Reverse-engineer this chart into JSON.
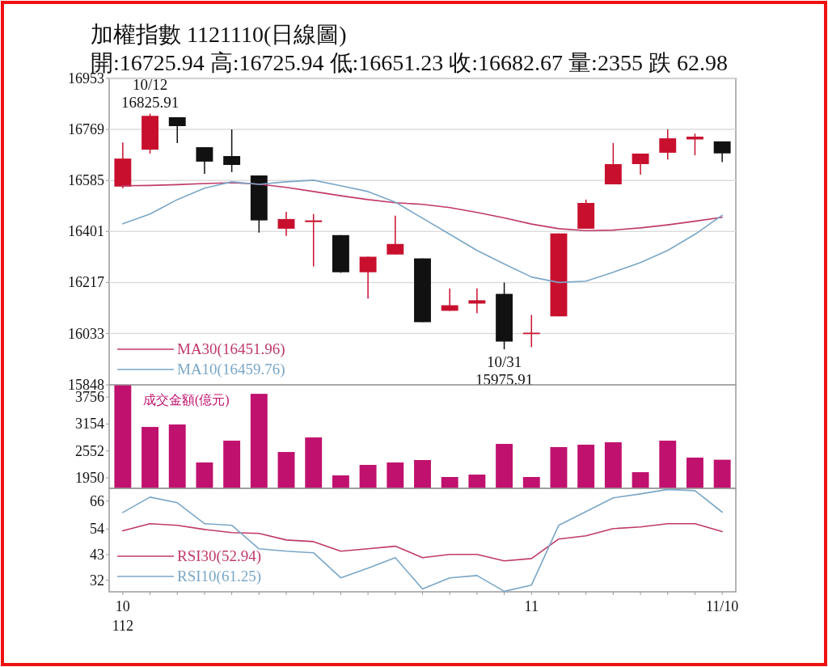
{
  "chart_data": [
    {
      "type": "candlestick",
      "title": "加權指數 1121110(日線圖)",
      "subtitle": "開:16725.94 高:16725.94 低:16651.23 收:16682.67 量:2355 跌 62.98",
      "categories": [
        null,
        null,
        null,
        null,
        null,
        null,
        null,
        null,
        null,
        null,
        null,
        null,
        null,
        null,
        null,
        null,
        null,
        null,
        null,
        null,
        null,
        null,
        null
      ],
      "ohlc": [
        [
          16563,
          16722,
          16557,
          16664
        ],
        [
          16696,
          16825.91,
          16682,
          16818
        ],
        [
          16813,
          16813,
          16720,
          16781
        ],
        [
          16705,
          16705,
          16609,
          16653
        ],
        [
          16673,
          16769,
          16615,
          16641
        ],
        [
          16603,
          16603,
          16397,
          16441
        ],
        [
          16411,
          16472,
          16385,
          16446
        ],
        [
          16435,
          16464,
          16275,
          16441
        ],
        [
          16388,
          16388,
          16252,
          16254
        ],
        [
          16254,
          16310,
          16159,
          16310
        ],
        [
          16318,
          16458,
          16318,
          16356
        ],
        [
          16304,
          16304,
          16074,
          16074
        ],
        [
          16115,
          16196,
          16115,
          16135
        ],
        [
          16141,
          16196,
          16106,
          16153
        ],
        [
          16176,
          16217,
          15975.91,
          16004
        ],
        [
          16031,
          16100,
          15984,
          16036
        ],
        [
          16095,
          16394,
          16095,
          16394
        ],
        [
          16411,
          16516,
          16411,
          16504
        ],
        [
          16571,
          16720,
          16571,
          16644
        ],
        [
          16644,
          16682,
          16606,
          16682
        ],
        [
          16685,
          16769,
          16661,
          16737
        ],
        [
          16733,
          16754,
          16676,
          16743
        ],
        [
          16725.94,
          16725.94,
          16651.23,
          16682.67
        ]
      ],
      "colors": [
        "#c8102e",
        "#c8102e",
        "#111111",
        "#111111",
        "#111111",
        "#111111",
        "#c8102e",
        "#c8102e",
        "#111111",
        "#c8102e",
        "#c8102e",
        "#111111",
        "#c8102e",
        "#c8102e",
        "#111111",
        "#c8102e",
        "#c8102e",
        "#c8102e",
        "#c8102e",
        "#c8102e",
        "#c8102e",
        "#c8102e",
        "#111111"
      ],
      "series": [
        {
          "type": "line",
          "name": "MA30(16451.96)",
          "color": "#c0396b",
          "values": [
            16566,
            16567,
            16570,
            16574,
            16577,
            16572,
            16560,
            16545,
            16530,
            16516,
            16505,
            16499,
            16487,
            16470,
            16450,
            16428,
            16411,
            16404,
            16406,
            16414,
            16425,
            16438,
            16451.96
          ]
        },
        {
          "type": "line",
          "name": "MA10(16459.76)",
          "color": "#7aa7c7",
          "values": [
            16429,
            16464,
            16516,
            16557,
            16580,
            16571,
            16580,
            16586,
            16566,
            16545,
            16507,
            16449,
            16391,
            16333,
            16284,
            16237,
            16217,
            16222,
            16254,
            16289,
            16333,
            16391,
            16459.76
          ]
        }
      ],
      "ylim": [
        15848,
        16953
      ],
      "yticks": [
        15848,
        16033,
        16217,
        16401,
        16585,
        16769,
        16953
      ],
      "grid": "y",
      "legend": "bottom left",
      "tick_labels": "y",
      "annotations": [
        {
          "text": "10/12\n16825.91",
          "y": 16825.91
        },
        {
          "text": "10/31\n15975.91",
          "y": 15975.91
        }
      ]
    },
    {
      "type": "bar",
      "categories": [
        null,
        null,
        null,
        null,
        null,
        null,
        null,
        null,
        null,
        null,
        null,
        null,
        null,
        null,
        null,
        null,
        null,
        null,
        null,
        null,
        null,
        null,
        null
      ],
      "values": [
        4020,
        3088,
        3143,
        2293,
        2781,
        3829,
        2528,
        2853,
        2004,
        2239,
        2293,
        2348,
        1968,
        2022,
        2709,
        1968,
        2637,
        2691,
        2745,
        2076,
        2781,
        2402,
        2355
      ],
      "color": "#c0116e",
      "ylim": [
        1715,
        4030
      ],
      "yticks": [
        1950,
        2552,
        3154,
        3756
      ],
      "tick_labels": "y",
      "annotations": [
        "成交金額(億元)"
      ]
    },
    {
      "type": "line",
      "categories": [
        "10\n112",
        null,
        null,
        null,
        null,
        null,
        null,
        null,
        null,
        null,
        null,
        null,
        null,
        null,
        null,
        "11",
        null,
        null,
        null,
        null,
        null,
        null,
        "11/10"
      ],
      "series": [
        {
          "name": "RSI30(52.94)",
          "color": "#c0396b",
          "values": [
            53.2,
            56.3,
            55.6,
            53.8,
            52.5,
            52.1,
            49.3,
            48.6,
            44.5,
            45.5,
            46.6,
            41.7,
            43.1,
            43.1,
            40.3,
            41.3,
            49.7,
            51.1,
            54.2,
            54.9,
            56.3,
            56.3,
            52.94
          ]
        },
        {
          "name": "RSI10(61.25)",
          "color": "#7aa7c7",
          "values": [
            61.1,
            67.7,
            65.3,
            56.3,
            55.6,
            45.5,
            44.5,
            43.8,
            33,
            37.2,
            41.7,
            28.2,
            33,
            34,
            27.2,
            29.9,
            55.6,
            61.5,
            67.4,
            69.1,
            71,
            70.5,
            61.25
          ]
        }
      ],
      "ylim": [
        27,
        71.5
      ],
      "yticks": [
        32,
        43,
        54,
        66
      ],
      "legend": "bottom left"
    }
  ]
}
